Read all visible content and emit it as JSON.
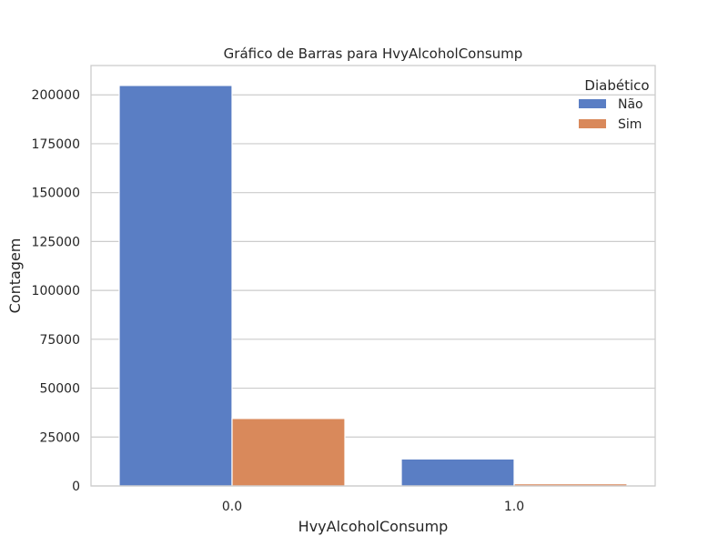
{
  "chart_data": {
    "type": "bar",
    "title": "Gráfico de Barras para HvyAlcoholConsump",
    "xlabel": "HvyAlcoholConsump",
    "ylabel": "Contagem",
    "categories": [
      "0.0",
      "1.0"
    ],
    "series": [
      {
        "name": "Não",
        "color": "#5a7ec4",
        "values": [
          204800,
          13800
        ]
      },
      {
        "name": "Sim",
        "color": "#d9895b",
        "values": [
          34500,
          1100
        ]
      }
    ],
    "ylim": [
      0,
      215000
    ],
    "yticks": [
      0,
      25000,
      50000,
      75000,
      100000,
      125000,
      150000,
      175000,
      200000
    ],
    "grid": "horizontal",
    "legend": {
      "title": "Diabético",
      "placement": "top-right"
    }
  }
}
